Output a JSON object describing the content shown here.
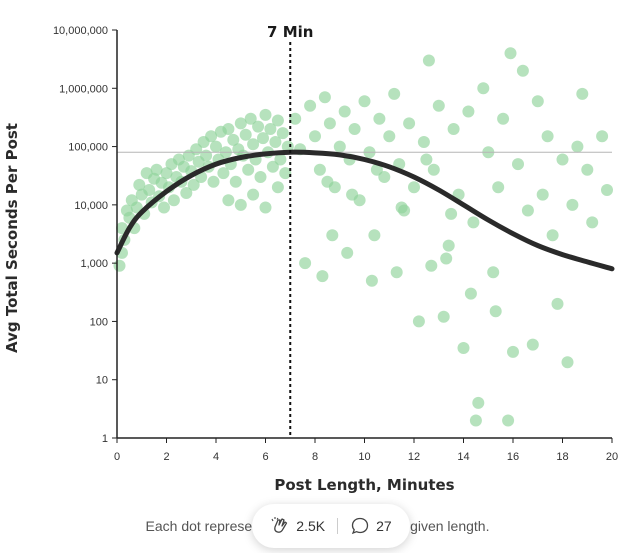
{
  "chart_data": {
    "type": "scatter",
    "xlabel": "Post Length, Minutes",
    "ylabel": "Avg Total Seconds Per Post",
    "x_ticks": [
      "0",
      "2",
      "4",
      "6",
      "8",
      "10",
      "12",
      "14",
      "16",
      "18",
      "20"
    ],
    "y_ticks": [
      "1",
      "10",
      "100",
      "1,000",
      "10,000",
      "100,000",
      "1,000,000",
      "10,000,000"
    ],
    "xlim": [
      0,
      20
    ],
    "ylim": [
      1,
      10000000
    ],
    "y_scale": "log",
    "grid": false,
    "reference_line": {
      "label": "7 Min",
      "x": 7
    },
    "horizontal_reference": {
      "y": 80000
    },
    "trend_curve": {
      "x": [
        0,
        0.5,
        1,
        2,
        3,
        4,
        5,
        6,
        7,
        8,
        9,
        10,
        11,
        12,
        13,
        14,
        15,
        16,
        17,
        18,
        19,
        20
      ],
      "y": [
        1500,
        4000,
        7500,
        17000,
        32000,
        50000,
        65000,
        75000,
        80000,
        78000,
        72000,
        60000,
        45000,
        30000,
        18000,
        10000,
        5500,
        3200,
        2000,
        1400,
        1050,
        800
      ]
    },
    "points": [
      [
        0.1,
        900
      ],
      [
        0.2,
        1500
      ],
      [
        0.2,
        4000
      ],
      [
        0.3,
        2500
      ],
      [
        0.4,
        8000
      ],
      [
        0.5,
        6000
      ],
      [
        0.6,
        12000
      ],
      [
        0.7,
        4000
      ],
      [
        0.8,
        9000
      ],
      [
        0.9,
        22000
      ],
      [
        1.0,
        15000
      ],
      [
        1.1,
        7000
      ],
      [
        1.2,
        35000
      ],
      [
        1.3,
        18000
      ],
      [
        1.4,
        11000
      ],
      [
        1.5,
        28000
      ],
      [
        1.6,
        40000
      ],
      [
        1.7,
        14000
      ],
      [
        1.8,
        24000
      ],
      [
        1.9,
        9000
      ],
      [
        2.0,
        35000
      ],
      [
        2.1,
        20000
      ],
      [
        2.2,
        50000
      ],
      [
        2.3,
        12000
      ],
      [
        2.4,
        30000
      ],
      [
        2.5,
        60000
      ],
      [
        2.6,
        25000
      ],
      [
        2.7,
        45000
      ],
      [
        2.8,
        16000
      ],
      [
        2.9,
        70000
      ],
      [
        3.0,
        38000
      ],
      [
        3.1,
        22000
      ],
      [
        3.2,
        90000
      ],
      [
        3.3,
        55000
      ],
      [
        3.4,
        30000
      ],
      [
        3.5,
        120000
      ],
      [
        3.6,
        70000
      ],
      [
        3.7,
        45000
      ],
      [
        3.8,
        150000
      ],
      [
        3.9,
        25000
      ],
      [
        4.0,
        100000
      ],
      [
        4.1,
        60000
      ],
      [
        4.2,
        180000
      ],
      [
        4.3,
        35000
      ],
      [
        4.4,
        80000
      ],
      [
        4.5,
        200000
      ],
      [
        4.6,
        50000
      ],
      [
        4.7,
        130000
      ],
      [
        4.8,
        25000
      ],
      [
        4.9,
        90000
      ],
      [
        5.0,
        250000
      ],
      [
        5.1,
        70000
      ],
      [
        5.2,
        160000
      ],
      [
        5.3,
        40000
      ],
      [
        5.4,
        300000
      ],
      [
        5.5,
        110000
      ],
      [
        5.6,
        60000
      ],
      [
        5.7,
        220000
      ],
      [
        5.8,
        30000
      ],
      [
        5.9,
        140000
      ],
      [
        6.0,
        350000
      ],
      [
        6.1,
        80000
      ],
      [
        6.2,
        200000
      ],
      [
        6.3,
        45000
      ],
      [
        6.4,
        120000
      ],
      [
        6.5,
        280000
      ],
      [
        6.6,
        60000
      ],
      [
        6.7,
        170000
      ],
      [
        6.8,
        35000
      ],
      [
        6.9,
        100000
      ],
      [
        6.0,
        9000
      ],
      [
        5.5,
        15000
      ],
      [
        5.0,
        10000
      ],
      [
        6.5,
        20000
      ],
      [
        4.5,
        12000
      ],
      [
        7.2,
        300000
      ],
      [
        7.4,
        90000
      ],
      [
        7.6,
        1000
      ],
      [
        7.8,
        500000
      ],
      [
        8.0,
        150000
      ],
      [
        8.2,
        40000
      ],
      [
        8.4,
        700000
      ],
      [
        8.6,
        250000
      ],
      [
        8.8,
        20000
      ],
      [
        9.0,
        100000
      ],
      [
        9.2,
        400000
      ],
      [
        9.4,
        60000
      ],
      [
        9.6,
        200000
      ],
      [
        9.8,
        12000
      ],
      [
        10.0,
        600000
      ],
      [
        10.2,
        80000
      ],
      [
        10.4,
        3000
      ],
      [
        10.6,
        300000
      ],
      [
        10.8,
        30000
      ],
      [
        11.0,
        150000
      ],
      [
        11.2,
        800000
      ],
      [
        11.4,
        50000
      ],
      [
        11.6,
        8000
      ],
      [
        11.8,
        250000
      ],
      [
        12.0,
        20000
      ],
      [
        12.2,
        100
      ],
      [
        12.4,
        120000
      ],
      [
        12.6,
        3000000
      ],
      [
        12.8,
        40000
      ],
      [
        13.0,
        500000
      ],
      [
        13.2,
        120
      ],
      [
        13.4,
        2000
      ],
      [
        13.6,
        200000
      ],
      [
        13.8,
        15000
      ],
      [
        14.0,
        35
      ],
      [
        14.2,
        400000
      ],
      [
        14.4,
        5000
      ],
      [
        14.5,
        2
      ],
      [
        14.6,
        4
      ],
      [
        14.8,
        1000000
      ],
      [
        15.0,
        80000
      ],
      [
        15.2,
        700
      ],
      [
        15.4,
        20000
      ],
      [
        15.6,
        300000
      ],
      [
        15.8,
        2
      ],
      [
        15.9,
        4000000
      ],
      [
        16.0,
        30
      ],
      [
        16.2,
        50000
      ],
      [
        16.4,
        2000000
      ],
      [
        16.6,
        8000
      ],
      [
        16.8,
        40
      ],
      [
        17.0,
        600000
      ],
      [
        17.2,
        15000
      ],
      [
        17.4,
        150000
      ],
      [
        17.6,
        3000
      ],
      [
        17.8,
        200
      ],
      [
        18.0,
        60000
      ],
      [
        18.2,
        20
      ],
      [
        18.4,
        10000
      ],
      [
        18.6,
        100000
      ],
      [
        18.8,
        800000
      ],
      [
        19.0,
        40000
      ],
      [
        19.2,
        5000
      ],
      [
        19.6,
        150000
      ],
      [
        19.8,
        18000
      ],
      [
        10.5,
        40000
      ],
      [
        11.5,
        9000
      ],
      [
        12.5,
        60000
      ],
      [
        13.5,
        7000
      ],
      [
        9.5,
        15000
      ],
      [
        8.5,
        25000
      ],
      [
        8.3,
        600
      ],
      [
        8.7,
        3000
      ],
      [
        9.3,
        1500
      ],
      [
        10.3,
        500
      ],
      [
        11.3,
        700
      ],
      [
        12.7,
        900
      ],
      [
        13.3,
        1200
      ],
      [
        14.3,
        300
      ],
      [
        15.3,
        150
      ]
    ]
  },
  "caption": {
    "left": "Each dot represer",
    "right": "of a given length."
  },
  "toolbar": {
    "clap_count": "2.5K",
    "comment_count": "27"
  },
  "colors": {
    "dots": "#8fd39a",
    "curve": "#2a2a2a",
    "axis": "#222222"
  }
}
